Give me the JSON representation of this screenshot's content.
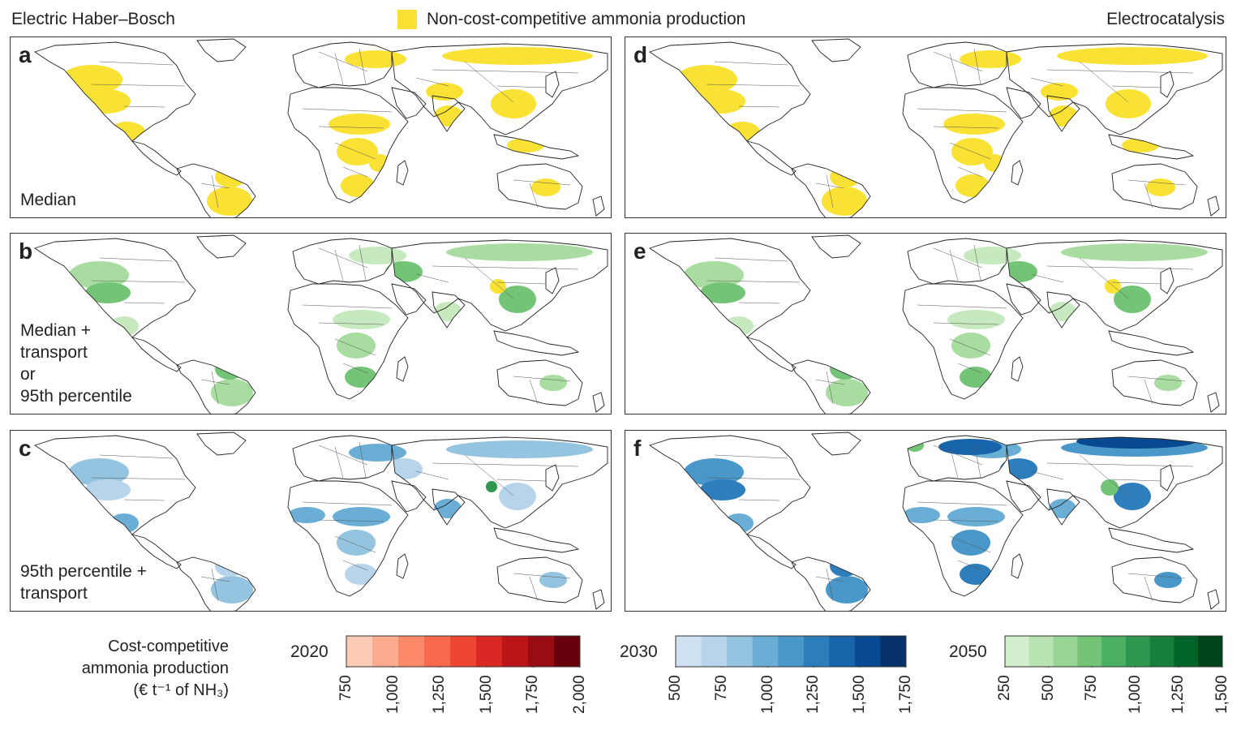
{
  "header": {
    "left_title": "Electric Haber–Bosch",
    "right_title": "Electrocatalysis",
    "legend_label": "Non-cost-competitive ammonia production",
    "legend_color": "#f9e234"
  },
  "panels": [
    {
      "letter": "a",
      "note_lines": [
        "Median"
      ],
      "style": "yellow"
    },
    {
      "letter": "b",
      "note_lines": [
        "Median +",
        "transport",
        "or",
        "95th percentile"
      ],
      "style": "green"
    },
    {
      "letter": "c",
      "note_lines": [
        "95th percentile +",
        "transport"
      ],
      "style": "blue"
    },
    {
      "letter": "d",
      "note_lines": [],
      "style": "yellow"
    },
    {
      "letter": "e",
      "note_lines": [],
      "style": "green"
    },
    {
      "letter": "f",
      "note_lines": [],
      "style": "blue-dark"
    }
  ],
  "colorbar": {
    "title_lines": [
      "Cost-competitive",
      "ammonia production",
      "(€ t⁻¹ of NH₃)"
    ],
    "scales": [
      {
        "year": "2020",
        "ticks": [
          "750",
          "1,000",
          "1,250",
          "1,500",
          "1,750",
          "2,000"
        ],
        "colors": [
          "#fdcab5",
          "#fcab8f",
          "#fc8a6a",
          "#f9694c",
          "#ef4533",
          "#d92723",
          "#bb151a",
          "#980c13",
          "#67000d"
        ]
      },
      {
        "year": "2030",
        "ticks": [
          "500",
          "750",
          "1,000",
          "1,250",
          "1,500",
          "1,750"
        ],
        "colors": [
          "#d0e1f2",
          "#b7d4ea",
          "#94c4df",
          "#6aaed6",
          "#4a98c9",
          "#2e7ebc",
          "#1764ab",
          "#084a91",
          "#08306b"
        ]
      },
      {
        "year": "2050",
        "ticks": [
          "250",
          "500",
          "750",
          "1,000",
          "1,250",
          "1,500"
        ],
        "colors": [
          "#d3eecd",
          "#b8e3b2",
          "#98d594",
          "#73c476",
          "#4bb062",
          "#2f984f",
          "#157f3b",
          "#036429",
          "#00441b"
        ]
      }
    ]
  }
}
